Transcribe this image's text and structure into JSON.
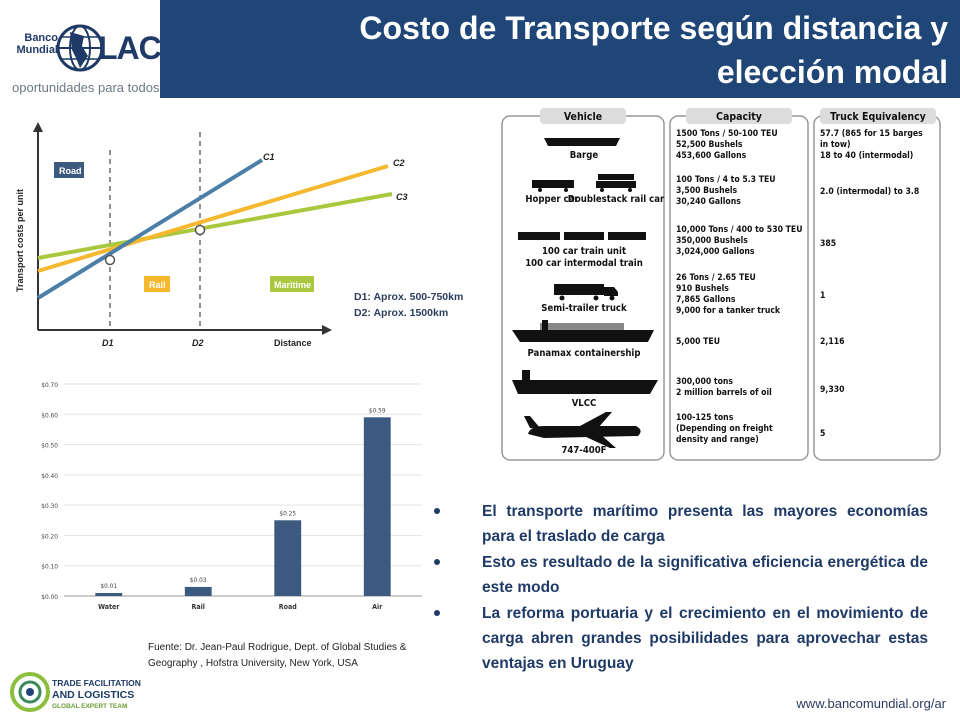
{
  "header": {
    "title": "Costo de Transporte según distancia y elección modal",
    "logo_banco": "Banco Mundial",
    "logo_lac": "LAC",
    "tagline": "oportunidades para todos"
  },
  "line_chart": {
    "y_label": "Transport costs per unit",
    "x_label": "Distance",
    "d1": "D1",
    "d2": "D2",
    "curves": [
      "C1",
      "C2",
      "C3"
    ],
    "modes": [
      "Road",
      "Rail",
      "Maritime"
    ],
    "colors": {
      "road": "#4c7fa8",
      "rail": "#f5b82e",
      "maritime": "#a9c83e"
    },
    "notes": [
      "D1: Aprox. 500-750km",
      "D2: Aprox. 1500km"
    ]
  },
  "chart_data": {
    "type": "bar",
    "categories": [
      "Water",
      "Rail",
      "Road",
      "Air"
    ],
    "values": [
      0.01,
      0.03,
      0.25,
      0.59
    ],
    "data_labels": [
      "$0.01",
      "$0.03",
      "$0.25",
      "$0.59"
    ],
    "ytick_labels": [
      "$0.00",
      "$0.10",
      "$0.20",
      "$0.30",
      "$0.40",
      "$0.50",
      "$0.60",
      "$0.70"
    ],
    "yticks": [
      0,
      0.1,
      0.2,
      0.3,
      0.4,
      0.5,
      0.6,
      0.7
    ],
    "ylim": [
      0,
      0.7
    ],
    "bar_color": "#3c5a80",
    "grid": true
  },
  "vehicle_table": {
    "headers": [
      "Vehicle",
      "Capacity",
      "Truck Equivalency"
    ],
    "rows": [
      {
        "vehicle": "Barge",
        "capacity": [
          "1500 Tons / 50-100 TEU",
          "52,500 Bushels",
          "453,600 Gallons"
        ],
        "equivalency": [
          "57.7 (865 for 15 barges",
          "in tow)",
          "18 to 40 (intermodal)"
        ]
      },
      {
        "vehicle": "Hopper car",
        "vehicle2": "Doublestack rail car",
        "capacity": [
          "100 Tons / 4 to 5.3 TEU",
          "3,500 Bushels",
          "30,240 Gallons"
        ],
        "equivalency": [
          "2.0 (intermodal) to 3.8"
        ]
      },
      {
        "vehicle": "100 car train unit",
        "vehicle2": "100 car intermodal train",
        "capacity": [
          "10,000 Tons / 400 to 530 TEU",
          "350,000 Bushels",
          "3,024,000 Gallons"
        ],
        "equivalency": [
          "385"
        ]
      },
      {
        "vehicle": "Semi-trailer truck",
        "capacity": [
          "26 Tons / 2.65 TEU",
          "910 Bushels",
          "7,865 Gallons",
          "9,000  for a tanker truck"
        ],
        "equivalency": [
          "1"
        ]
      },
      {
        "vehicle": "Panamax containership",
        "capacity": [
          "5,000 TEU"
        ],
        "equivalency": [
          "2,116"
        ]
      },
      {
        "vehicle": "VLCC",
        "capacity": [
          "300,000 tons",
          "2 million barrels of oil"
        ],
        "equivalency": [
          "9,330"
        ]
      },
      {
        "vehicle": "747-400F",
        "capacity": [
          "100-125 tons",
          "(Depending on freight",
          "density and range)"
        ],
        "equivalency": [
          "5"
        ]
      }
    ]
  },
  "bullets": [
    "El transporte marítimo presenta las mayores economías para el traslado de carga",
    "Esto es resultado de la significativa eficiencia energética de este modo",
    "La reforma portuaria y el crecimiento en el movimiento de carga abren grandes posibilidades para aprovechar estas ventajas en Uruguay"
  ],
  "source": "Fuente: Dr. Jean-Paul Rodrigue, Dept. of Global Studies & Geography , Hofstra University, New York, USA",
  "footer": {
    "url": "www.bancomundial.org/ar",
    "tfl_line1": "TRADE FACILITATION",
    "tfl_line2": "AND LOGISTICS",
    "tfl_line3": "GLOBAL EXPERT TEAM"
  }
}
